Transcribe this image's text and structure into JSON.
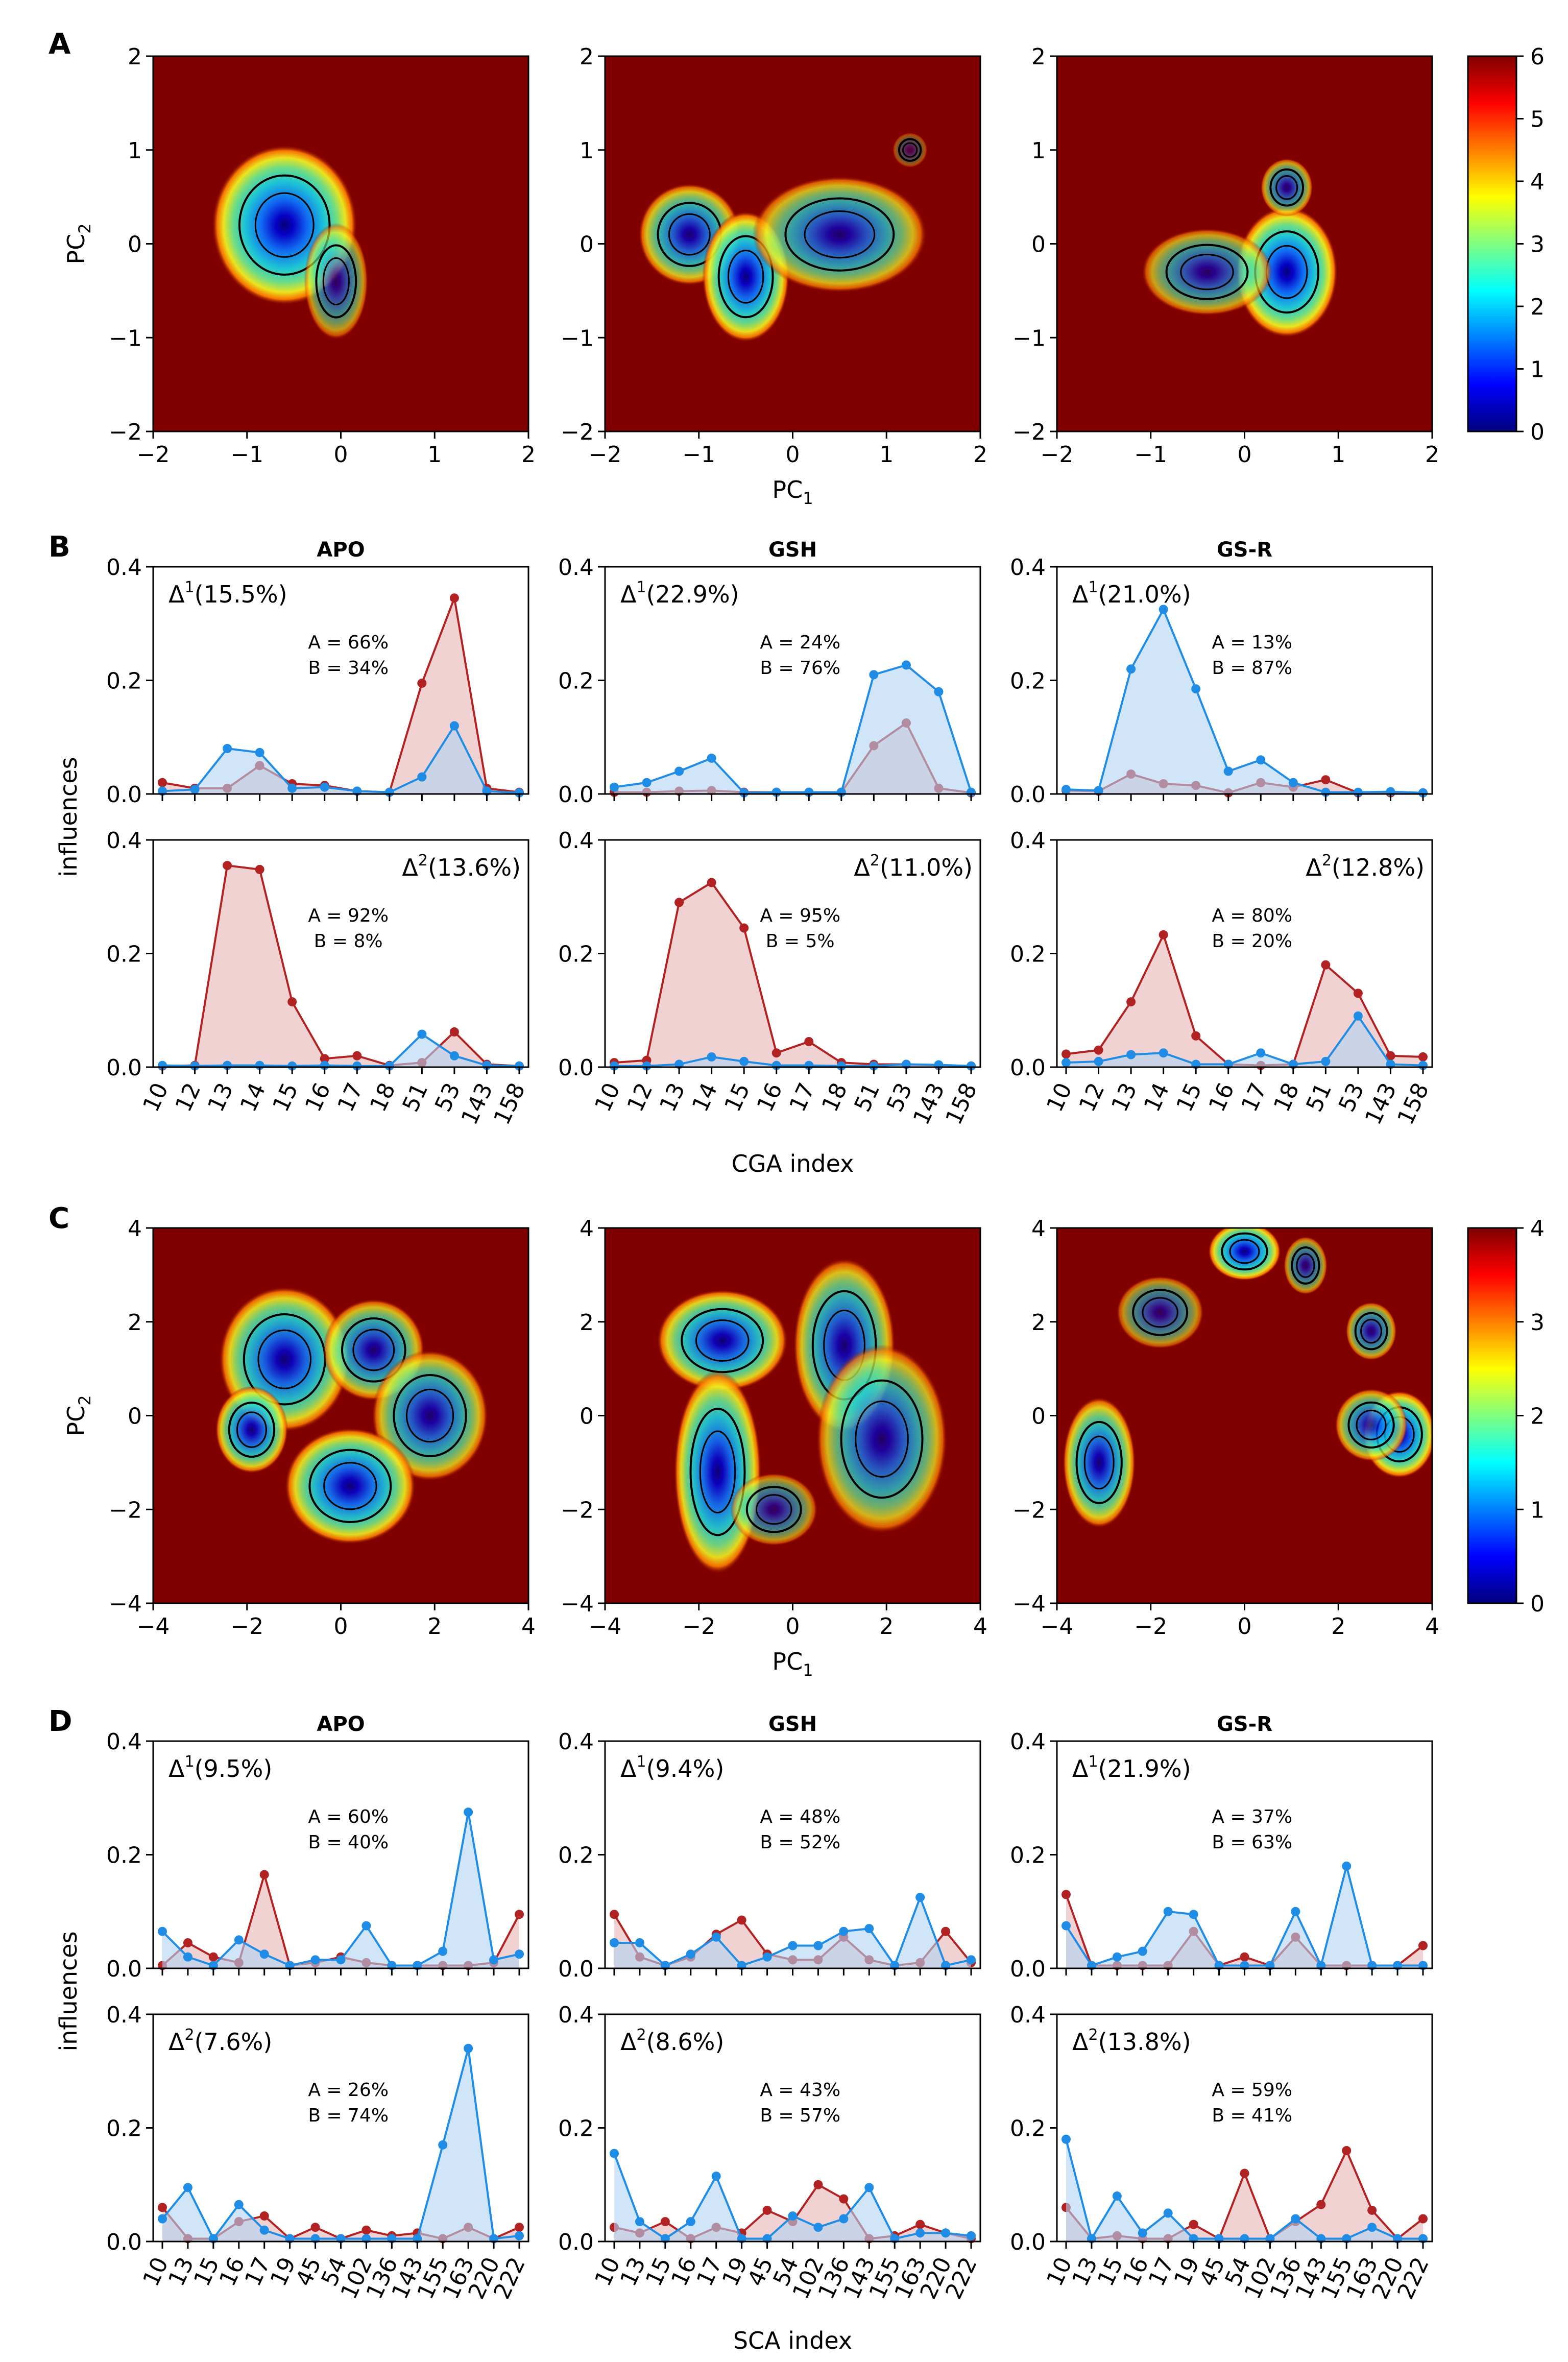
{
  "panel_labels": [
    "A",
    "B",
    "C",
    "D"
  ],
  "density_panels": {
    "A": {
      "xlabel": "PC",
      "xlabel_sub": "1",
      "ylabel": "PC",
      "ylabel_sub": "2",
      "xticks": [
        "−2",
        "−1",
        "0",
        "1",
        "2"
      ],
      "yticks": [
        "−2",
        "−1",
        "0",
        "1",
        "2"
      ],
      "xlim": [
        -2,
        2
      ],
      "ylim": [
        -2,
        2
      ],
      "colorbar_ticks": [
        "0",
        "1",
        "2",
        "3",
        "4",
        "5",
        "6"
      ],
      "colorbar_range": [
        0,
        6
      ]
    },
    "C": {
      "xlabel": "PC",
      "xlabel_sub": "1",
      "ylabel": "PC",
      "ylabel_sub": "2",
      "xticks": [
        "−4",
        "−2",
        "0",
        "2",
        "4"
      ],
      "yticks": [
        "−4",
        "−2",
        "0",
        "2",
        "4"
      ],
      "xlim": [
        -4,
        4
      ],
      "ylim": [
        -4,
        4
      ],
      "colorbar_ticks": [
        "0",
        "1",
        "2",
        "3",
        "4"
      ],
      "colorbar_range": [
        0,
        4
      ]
    }
  },
  "line_panels": {
    "B": {
      "xlabel": "CGA index",
      "ylabel": "influences",
      "categories": [
        "10",
        "12",
        "13",
        "14",
        "15",
        "16",
        "17",
        "18",
        "51",
        "53",
        "143",
        "158"
      ],
      "yticks": [
        "0.0",
        "0.2",
        "0.4"
      ],
      "ylim": [
        0,
        0.4
      ]
    },
    "D": {
      "xlabel": "SCA index",
      "ylabel": "influences",
      "categories": [
        "10",
        "13",
        "15",
        "16",
        "17",
        "19",
        "45",
        "54",
        "102",
        "136",
        "143",
        "155",
        "163",
        "220",
        "222"
      ],
      "yticks": [
        "0.0",
        "0.2",
        "0.4"
      ],
      "ylim": [
        0,
        0.4
      ]
    }
  },
  "colors": {
    "series_A": "#b22222",
    "series_B": "#1f8ce6",
    "fill_A": "#e8b4b4",
    "fill_B": "#b3d4f5",
    "background_density": "#800000"
  },
  "chart_data": [
    {
      "type": "heatmap",
      "panel": "A",
      "system": "APO",
      "xlim": [
        -2,
        2
      ],
      "ylim": [
        -2,
        2
      ],
      "blobs": [
        {
          "cx": -0.6,
          "cy": 0.2,
          "rx": 0.5,
          "ry": 0.55,
          "depth": 0.2
        },
        {
          "cx": -0.05,
          "cy": -0.4,
          "rx": 0.22,
          "ry": 0.4,
          "depth": 1.5
        }
      ]
    },
    {
      "type": "heatmap",
      "panel": "A",
      "system": "GSH",
      "xlim": [
        -2,
        2
      ],
      "ylim": [
        -2,
        2
      ],
      "blobs": [
        {
          "cx": -1.1,
          "cy": 0.1,
          "rx": 0.35,
          "ry": 0.35,
          "depth": 0.8
        },
        {
          "cx": -0.5,
          "cy": -0.35,
          "rx": 0.3,
          "ry": 0.45,
          "depth": 0.3
        },
        {
          "cx": 0.5,
          "cy": 0.1,
          "rx": 0.6,
          "ry": 0.4,
          "depth": 1.0
        },
        {
          "cx": 1.25,
          "cy": 1.0,
          "rx": 0.12,
          "ry": 0.12,
          "depth": 3.0
        }
      ]
    },
    {
      "type": "heatmap",
      "panel": "A",
      "system": "GS-R",
      "xlim": [
        -2,
        2
      ],
      "ylim": [
        -2,
        2
      ],
      "blobs": [
        {
          "cx": 0.45,
          "cy": -0.3,
          "rx": 0.35,
          "ry": 0.45,
          "depth": 0.2
        },
        {
          "cx": -0.4,
          "cy": -0.3,
          "rx": 0.45,
          "ry": 0.3,
          "depth": 1.3
        },
        {
          "cx": 0.45,
          "cy": 0.6,
          "rx": 0.18,
          "ry": 0.2,
          "depth": 1.3
        }
      ]
    },
    {
      "type": "line",
      "panel": "B",
      "system": "APO",
      "mode": "Δ",
      "mode_sup": "1",
      "variance": "(15.5%)",
      "pct_A": "A = 66%",
      "pct_B": "B = 34%",
      "series": [
        {
          "name": "A",
          "values": [
            0.02,
            0.01,
            0.01,
            0.05,
            0.018,
            0.015,
            0.005,
            0.003,
            0.195,
            0.345,
            0.01,
            0.003
          ]
        },
        {
          "name": "B",
          "values": [
            0.005,
            0.008,
            0.08,
            0.073,
            0.01,
            0.012,
            0.005,
            0.003,
            0.03,
            0.12,
            0.005,
            0.002
          ]
        }
      ]
    },
    {
      "type": "line",
      "panel": "B",
      "system": "GSH",
      "mode": "Δ",
      "mode_sup": "1",
      "variance": "(22.9%)",
      "pct_A": "A = 24%",
      "pct_B": "B = 76%",
      "series": [
        {
          "name": "A",
          "values": [
            0.003,
            0.003,
            0.005,
            0.006,
            0.003,
            0.003,
            0.003,
            0.003,
            0.085,
            0.125,
            0.01,
            0.002
          ]
        },
        {
          "name": "B",
          "values": [
            0.012,
            0.02,
            0.04,
            0.063,
            0.002,
            0.003,
            0.003,
            0.003,
            0.21,
            0.227,
            0.18,
            0.003
          ]
        }
      ]
    },
    {
      "type": "line",
      "panel": "B",
      "system": "GS-R",
      "mode": "Δ",
      "mode_sup": "1",
      "variance": "(21.0%)",
      "pct_A": "A = 13%",
      "pct_B": "B = 87%",
      "series": [
        {
          "name": "A",
          "values": [
            0.006,
            0.005,
            0.035,
            0.018,
            0.015,
            0.002,
            0.02,
            0.012,
            0.025,
            0.002,
            0.002,
            0.002
          ]
        },
        {
          "name": "B",
          "values": [
            0.008,
            0.006,
            0.22,
            0.325,
            0.185,
            0.04,
            0.06,
            0.02,
            0.003,
            0.003,
            0.004,
            0.002
          ]
        }
      ]
    },
    {
      "type": "line",
      "panel": "B",
      "system": "APO",
      "mode": "Δ",
      "mode_sup": "2",
      "variance": "(13.6%)",
      "pct_A": "A = 92%",
      "pct_B": "B =  8%",
      "series": [
        {
          "name": "A",
          "values": [
            0.002,
            0.003,
            0.355,
            0.348,
            0.115,
            0.015,
            0.02,
            0.003,
            0.008,
            0.062,
            0.005,
            0.002
          ]
        },
        {
          "name": "B",
          "values": [
            0.003,
            0.002,
            0.003,
            0.003,
            0.002,
            0.003,
            0.002,
            0.002,
            0.058,
            0.02,
            0.003,
            0.002
          ]
        }
      ]
    },
    {
      "type": "line",
      "panel": "B",
      "system": "GSH",
      "mode": "Δ",
      "mode_sup": "2",
      "variance": "(11.0%)",
      "pct_A": "A = 95%",
      "pct_B": "B =  5%",
      "series": [
        {
          "name": "A",
          "values": [
            0.008,
            0.012,
            0.29,
            0.325,
            0.245,
            0.025,
            0.045,
            0.008,
            0.005,
            0.005,
            0.003,
            0.002
          ]
        },
        {
          "name": "B",
          "values": [
            0.002,
            0.002,
            0.005,
            0.018,
            0.01,
            0.003,
            0.003,
            0.002,
            0.002,
            0.005,
            0.004,
            0.002
          ]
        }
      ]
    },
    {
      "type": "line",
      "panel": "B",
      "system": "GS-R",
      "mode": "Δ",
      "mode_sup": "2",
      "variance": "(12.8%)",
      "pct_A": "A = 80%",
      "pct_B": "B = 20%",
      "series": [
        {
          "name": "A",
          "values": [
            0.023,
            0.03,
            0.115,
            0.233,
            0.055,
            0.005,
            0.003,
            0.005,
            0.18,
            0.13,
            0.02,
            0.018
          ]
        },
        {
          "name": "B",
          "values": [
            0.008,
            0.01,
            0.022,
            0.025,
            0.005,
            0.005,
            0.025,
            0.005,
            0.01,
            0.09,
            0.005,
            0.003
          ]
        }
      ]
    },
    {
      "type": "heatmap",
      "panel": "C",
      "system": "APO",
      "xlim": [
        -4,
        4
      ],
      "ylim": [
        -4,
        4
      ],
      "blobs": [
        {
          "cx": -1.2,
          "cy": 1.2,
          "rx": 0.9,
          "ry": 1.0,
          "depth": 0.5
        },
        {
          "cx": 0.7,
          "cy": 1.4,
          "rx": 0.7,
          "ry": 0.7,
          "depth": 0.9
        },
        {
          "cx": 1.9,
          "cy": 0.0,
          "rx": 0.8,
          "ry": 0.9,
          "depth": 0.9
        },
        {
          "cx": 0.2,
          "cy": -1.5,
          "rx": 0.9,
          "ry": 0.8,
          "depth": 0.4
        },
        {
          "cx": -1.9,
          "cy": -0.3,
          "rx": 0.5,
          "ry": 0.6,
          "depth": 0.6
        }
      ]
    },
    {
      "type": "heatmap",
      "panel": "C",
      "system": "GSH",
      "xlim": [
        -4,
        4
      ],
      "ylim": [
        -4,
        4
      ],
      "blobs": [
        {
          "cx": -1.5,
          "cy": 1.6,
          "rx": 0.9,
          "ry": 0.7,
          "depth": 0.5
        },
        {
          "cx": -1.6,
          "cy": -1.2,
          "rx": 0.6,
          "ry": 1.4,
          "depth": 0.4
        },
        {
          "cx": 1.1,
          "cy": 1.5,
          "rx": 0.7,
          "ry": 1.2,
          "depth": 0.8
        },
        {
          "cx": 1.9,
          "cy": -0.5,
          "rx": 0.9,
          "ry": 1.3,
          "depth": 1.0
        },
        {
          "cx": -0.4,
          "cy": -2.0,
          "rx": 0.6,
          "ry": 0.5,
          "depth": 1.6
        }
      ]
    },
    {
      "type": "heatmap",
      "panel": "C",
      "system": "GS-R",
      "xlim": [
        -4,
        4
      ],
      "ylim": [
        -4,
        4
      ],
      "blobs": [
        {
          "cx": 0.0,
          "cy": 3.5,
          "rx": 0.5,
          "ry": 0.4,
          "depth": 0.3
        },
        {
          "cx": -3.1,
          "cy": -1.0,
          "rx": 0.5,
          "ry": 0.9,
          "depth": 0.6
        },
        {
          "cx": 3.3,
          "cy": -0.4,
          "rx": 0.5,
          "ry": 0.6,
          "depth": 0.3
        },
        {
          "cx": 2.7,
          "cy": -0.2,
          "rx": 0.5,
          "ry": 0.5,
          "depth": 1.0
        },
        {
          "cx": 2.7,
          "cy": 1.8,
          "rx": 0.35,
          "ry": 0.4,
          "depth": 1.3
        },
        {
          "cx": -1.8,
          "cy": 2.2,
          "rx": 0.6,
          "ry": 0.5,
          "depth": 1.6
        },
        {
          "cx": 1.3,
          "cy": 3.2,
          "rx": 0.3,
          "ry": 0.4,
          "depth": 1.5
        }
      ]
    },
    {
      "type": "line",
      "panel": "D",
      "system": "APO",
      "mode": "Δ",
      "mode_sup": "1",
      "variance": "(9.5%)",
      "pct_A": "A = 60%",
      "pct_B": "B = 40%",
      "series": [
        {
          "name": "A",
          "values": [
            0.005,
            0.045,
            0.02,
            0.01,
            0.165,
            0.005,
            0.01,
            0.02,
            0.01,
            0.005,
            0.005,
            0.005,
            0.005,
            0.01,
            0.095
          ]
        },
        {
          "name": "B",
          "values": [
            0.065,
            0.02,
            0.005,
            0.05,
            0.025,
            0.005,
            0.015,
            0.015,
            0.075,
            0.005,
            0.005,
            0.03,
            0.275,
            0.015,
            0.025
          ]
        }
      ]
    },
    {
      "type": "line",
      "panel": "D",
      "system": "GSH",
      "mode": "Δ",
      "mode_sup": "1",
      "variance": "(9.4%)",
      "pct_A": "A = 48%",
      "pct_B": "B = 52%",
      "series": [
        {
          "name": "A",
          "values": [
            0.095,
            0.02,
            0.005,
            0.02,
            0.06,
            0.085,
            0.025,
            0.015,
            0.015,
            0.055,
            0.015,
            0.005,
            0.01,
            0.065,
            0.01
          ]
        },
        {
          "name": "B",
          "values": [
            0.045,
            0.045,
            0.005,
            0.025,
            0.055,
            0.005,
            0.02,
            0.04,
            0.04,
            0.065,
            0.07,
            0.005,
            0.125,
            0.005,
            0.015
          ]
        }
      ]
    },
    {
      "type": "line",
      "panel": "D",
      "system": "GS-R",
      "mode": "Δ",
      "mode_sup": "1",
      "variance": "(21.9%)",
      "pct_A": "A = 37%",
      "pct_B": "B = 63%",
      "series": [
        {
          "name": "A",
          "values": [
            0.13,
            0.005,
            0.005,
            0.005,
            0.005,
            0.065,
            0.005,
            0.02,
            0.005,
            0.055,
            0.005,
            0.005,
            0.005,
            0.005,
            0.04
          ]
        },
        {
          "name": "B",
          "values": [
            0.075,
            0.005,
            0.02,
            0.03,
            0.1,
            0.095,
            0.005,
            0.005,
            0.005,
            0.1,
            0.005,
            0.18,
            0.005,
            0.005,
            0.005
          ]
        }
      ]
    },
    {
      "type": "line",
      "panel": "D",
      "system": "APO",
      "mode": "Δ",
      "mode_sup": "2",
      "variance": "(7.6%)",
      "pct_A": "A = 26%",
      "pct_B": "B = 74%",
      "series": [
        {
          "name": "A",
          "values": [
            0.06,
            0.005,
            0.005,
            0.035,
            0.045,
            0.005,
            0.025,
            0.005,
            0.02,
            0.01,
            0.015,
            0.005,
            0.025,
            0.005,
            0.025
          ]
        },
        {
          "name": "B",
          "values": [
            0.04,
            0.095,
            0.005,
            0.065,
            0.02,
            0.005,
            0.005,
            0.005,
            0.005,
            0.005,
            0.005,
            0.17,
            0.34,
            0.005,
            0.01
          ]
        }
      ]
    },
    {
      "type": "line",
      "panel": "D",
      "system": "GSH",
      "mode": "Δ",
      "mode_sup": "2",
      "variance": "(8.6%)",
      "pct_A": "A = 43%",
      "pct_B": "B = 57%",
      "series": [
        {
          "name": "A",
          "values": [
            0.025,
            0.015,
            0.035,
            0.005,
            0.025,
            0.015,
            0.055,
            0.035,
            0.1,
            0.075,
            0.005,
            0.01,
            0.03,
            0.015,
            0.005
          ]
        },
        {
          "name": "B",
          "values": [
            0.155,
            0.035,
            0.005,
            0.035,
            0.115,
            0.005,
            0.005,
            0.045,
            0.025,
            0.04,
            0.095,
            0.005,
            0.015,
            0.015,
            0.01
          ]
        }
      ]
    },
    {
      "type": "line",
      "panel": "D",
      "system": "GS-R",
      "mode": "Δ",
      "mode_sup": "2",
      "variance": "(13.8%)",
      "pct_A": "A = 59%",
      "pct_B": "B = 41%",
      "series": [
        {
          "name": "A",
          "values": [
            0.06,
            0.005,
            0.01,
            0.005,
            0.005,
            0.03,
            0.005,
            0.12,
            0.005,
            0.035,
            0.065,
            0.16,
            0.055,
            0.005,
            0.04
          ]
        },
        {
          "name": "B",
          "values": [
            0.18,
            0.005,
            0.08,
            0.015,
            0.05,
            0.005,
            0.005,
            0.005,
            0.005,
            0.04,
            0.005,
            0.005,
            0.025,
            0.005,
            0.005
          ]
        }
      ]
    }
  ]
}
